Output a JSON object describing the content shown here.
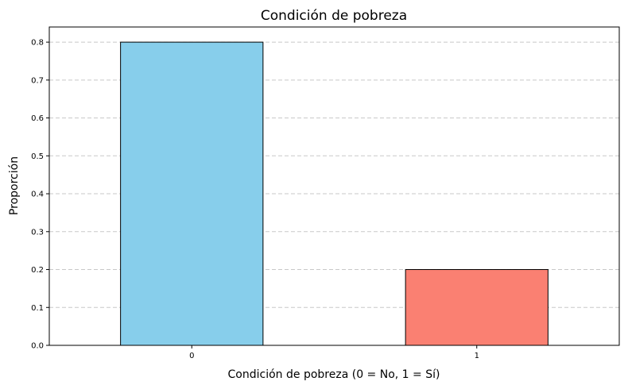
{
  "chart_data": {
    "type": "bar",
    "title": "Condición de pobreza",
    "xlabel": "Condición de pobreza (0 = No, 1 = Sí)",
    "ylabel": "Proporción",
    "categories": [
      "0",
      "1"
    ],
    "values": [
      0.8,
      0.2
    ],
    "colors": [
      "#87ceeb",
      "#fa8072"
    ],
    "edge_color": "#000000",
    "ylim": [
      0,
      0.84
    ],
    "yticks": [
      0.0,
      0.1,
      0.2,
      0.3,
      0.4,
      0.5,
      0.6,
      0.7,
      0.8
    ],
    "ytick_labels": [
      "0.0",
      "0.1",
      "0.2",
      "0.3",
      "0.4",
      "0.5",
      "0.6",
      "0.7",
      "0.8"
    ],
    "grid": "y-dashed"
  }
}
